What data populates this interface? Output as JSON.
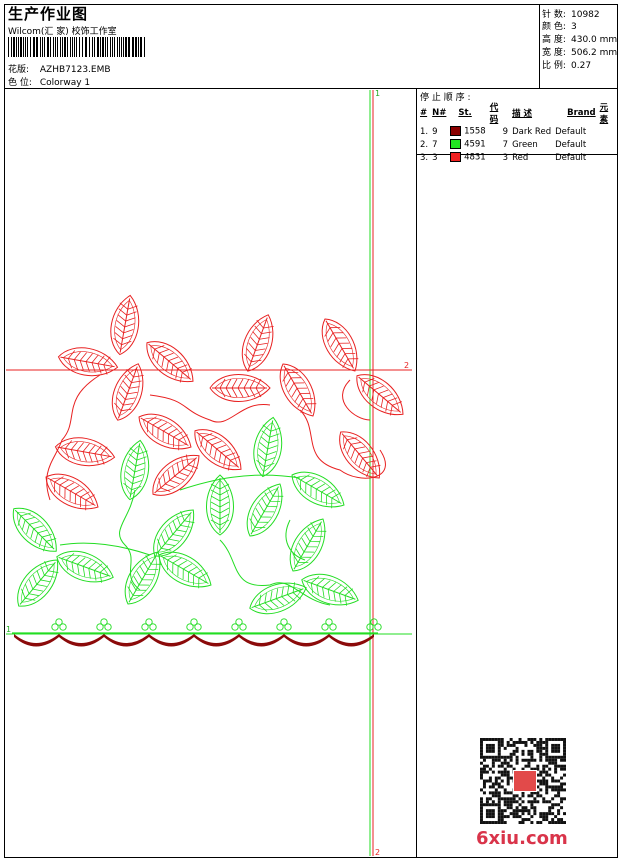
{
  "header": {
    "title": "生产作业图",
    "company": "Wilcom(汇 家) 校饰工作室",
    "design_label": "花版:",
    "design_value": "AZHB7123.EMB",
    "colorway_label": "色 位:",
    "colorway_value": "Colorway 1"
  },
  "stats": [
    {
      "label": "针 数:",
      "value": "10982"
    },
    {
      "label": "颜 色:",
      "value": "3"
    },
    {
      "label": "高 度:",
      "value": "430.0 mm"
    },
    {
      "label": "宽 度:",
      "value": "506.2 mm"
    },
    {
      "label": "比 例:",
      "value": "0.27"
    }
  ],
  "stop_sequence": {
    "title": "停 止 顺 序 :",
    "headers": [
      "#",
      "N#",
      "St.",
      "代 码",
      "描 述",
      "Brand",
      "元 素"
    ],
    "rows": [
      {
        "idx": "1.",
        "n": "9",
        "color": "#8b0000",
        "st": "1558",
        "code": "9",
        "desc": "Dark Red",
        "brand": "Default"
      },
      {
        "idx": "2.",
        "n": "7",
        "color": "#22e622",
        "st": "4591",
        "code": "7",
        "desc": "Green",
        "brand": "Default"
      },
      {
        "idx": "3.",
        "n": "3",
        "color": "#ee2020",
        "st": "4831",
        "code": "3",
        "desc": "Red",
        "brand": "Default"
      }
    ]
  },
  "markers": {
    "v_top": "1",
    "v_bottom": "2",
    "h_right": "2",
    "h_left": "1"
  },
  "watermark": {
    "site": "6xiu.com"
  },
  "colors": {
    "red": "#e82020",
    "green": "#22dd22",
    "dark_red": "#8b0a0a"
  }
}
